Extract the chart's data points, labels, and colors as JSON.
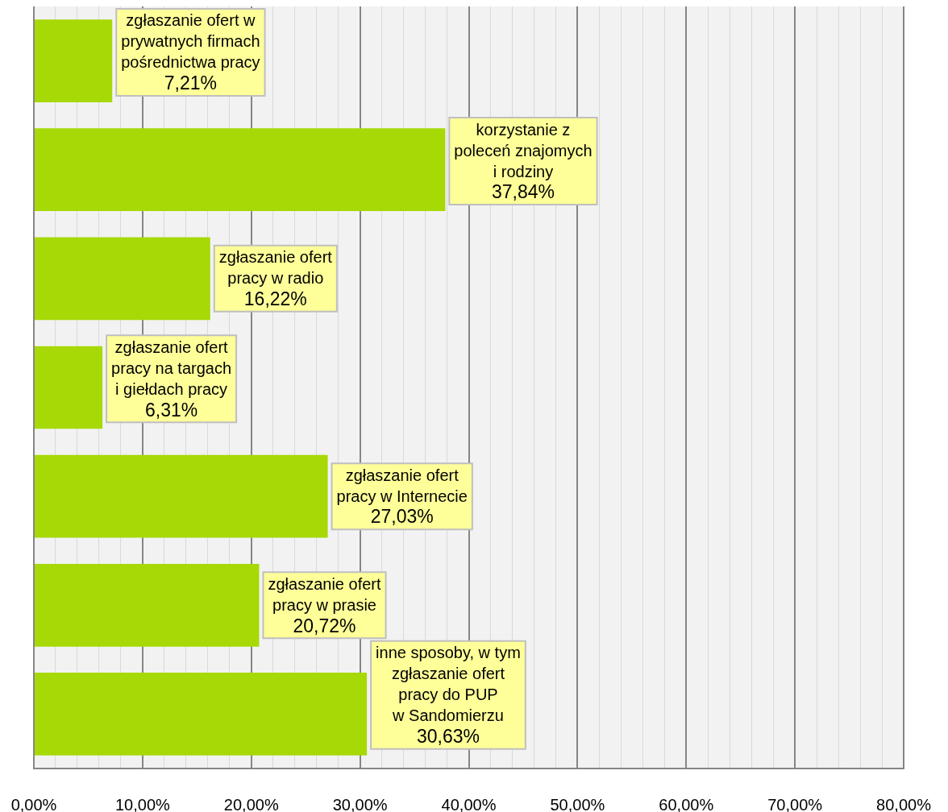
{
  "chart_data": {
    "type": "bar",
    "orientation": "horizontal",
    "categories": [
      "zgłaszanie ofert w\nprywatnych firmach\npośrednictwa pracy",
      "korzystanie z\npoleceń znajomych\ni rodziny",
      "zgłaszanie ofert\npracy w radio",
      "zgłaszanie ofert\npracy na targach\ni giełdach pracy",
      "zgłaszanie ofert\npracy w Internecie",
      "zgłaszanie ofert\npracy w prasie",
      "inne sposoby, w tym\nzgłaszanie ofert\npracy do PUP\nw Sandomierzu"
    ],
    "values": [
      7.21,
      37.84,
      16.22,
      6.31,
      27.03,
      20.72,
      30.63
    ],
    "value_labels": [
      "7,21%",
      "37,84%",
      "16,22%",
      "6,31%",
      "27,03%",
      "20,72%",
      "30,63%"
    ],
    "color": "#a6d906",
    "xlim": [
      0,
      80
    ],
    "xticks": [
      {
        "value": 0,
        "label": "0,00%"
      },
      {
        "value": 2,
        "label": null
      },
      {
        "value": 4,
        "label": null
      },
      {
        "value": 6,
        "label": null
      },
      {
        "value": 8,
        "label": null
      },
      {
        "value": 10,
        "label": "10,00%"
      },
      {
        "value": 12,
        "label": null
      },
      {
        "value": 14,
        "label": null
      },
      {
        "value": 16,
        "label": null
      },
      {
        "value": 18,
        "label": null
      },
      {
        "value": 20,
        "label": "20,00%"
      },
      {
        "value": 22,
        "label": null
      },
      {
        "value": 24,
        "label": null
      },
      {
        "value": 26,
        "label": null
      },
      {
        "value": 28,
        "label": null
      },
      {
        "value": 30,
        "label": "30,00%"
      },
      {
        "value": 32,
        "label": null
      },
      {
        "value": 34,
        "label": null
      },
      {
        "value": 36,
        "label": null
      },
      {
        "value": 38,
        "label": null
      },
      {
        "value": 40,
        "label": "40,00%"
      },
      {
        "value": 42,
        "label": null
      },
      {
        "value": 44,
        "label": null
      },
      {
        "value": 46,
        "label": null
      },
      {
        "value": 48,
        "label": null
      },
      {
        "value": 50,
        "label": "50,00%"
      },
      {
        "value": 52,
        "label": null
      },
      {
        "value": 54,
        "label": null
      },
      {
        "value": 56,
        "label": null
      },
      {
        "value": 58,
        "label": null
      },
      {
        "value": 60,
        "label": "60,00%"
      },
      {
        "value": 62,
        "label": null
      },
      {
        "value": 64,
        "label": null
      },
      {
        "value": 66,
        "label": null
      },
      {
        "value": 68,
        "label": null
      },
      {
        "value": 70,
        "label": "70,00%"
      },
      {
        "value": 72,
        "label": null
      },
      {
        "value": 74,
        "label": null
      },
      {
        "value": 76,
        "label": null
      },
      {
        "value": 78,
        "label": null
      },
      {
        "value": 80,
        "label": "80,00%"
      }
    ],
    "grid": "x",
    "tick_labels": "x"
  }
}
